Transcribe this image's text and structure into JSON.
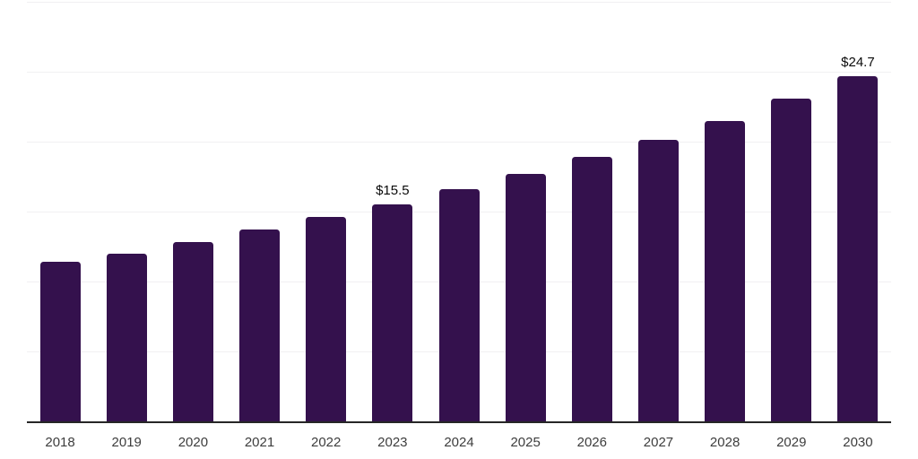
{
  "chart_data": {
    "type": "bar",
    "categories": [
      "2018",
      "2019",
      "2020",
      "2021",
      "2022",
      "2023",
      "2024",
      "2025",
      "2026",
      "2027",
      "2028",
      "2029",
      "2030"
    ],
    "values": [
      11.4,
      12.0,
      12.8,
      13.7,
      14.6,
      15.5,
      16.6,
      17.7,
      18.9,
      20.1,
      21.5,
      23.1,
      24.7
    ],
    "data_labels": {
      "2023": "$15.5",
      "2030": "$24.7"
    },
    "title": "",
    "xlabel": "",
    "ylabel": "",
    "ylim": [
      0,
      30
    ],
    "grid": true,
    "gridline_interval": 5,
    "legend": "none",
    "colors": {
      "bar": "#34114D",
      "gridline": "#f1f0f2",
      "axis_line": "#262626",
      "tick_label": "#3d3d3d",
      "data_label": "#0a0a0a",
      "background": "#ffffff"
    }
  }
}
